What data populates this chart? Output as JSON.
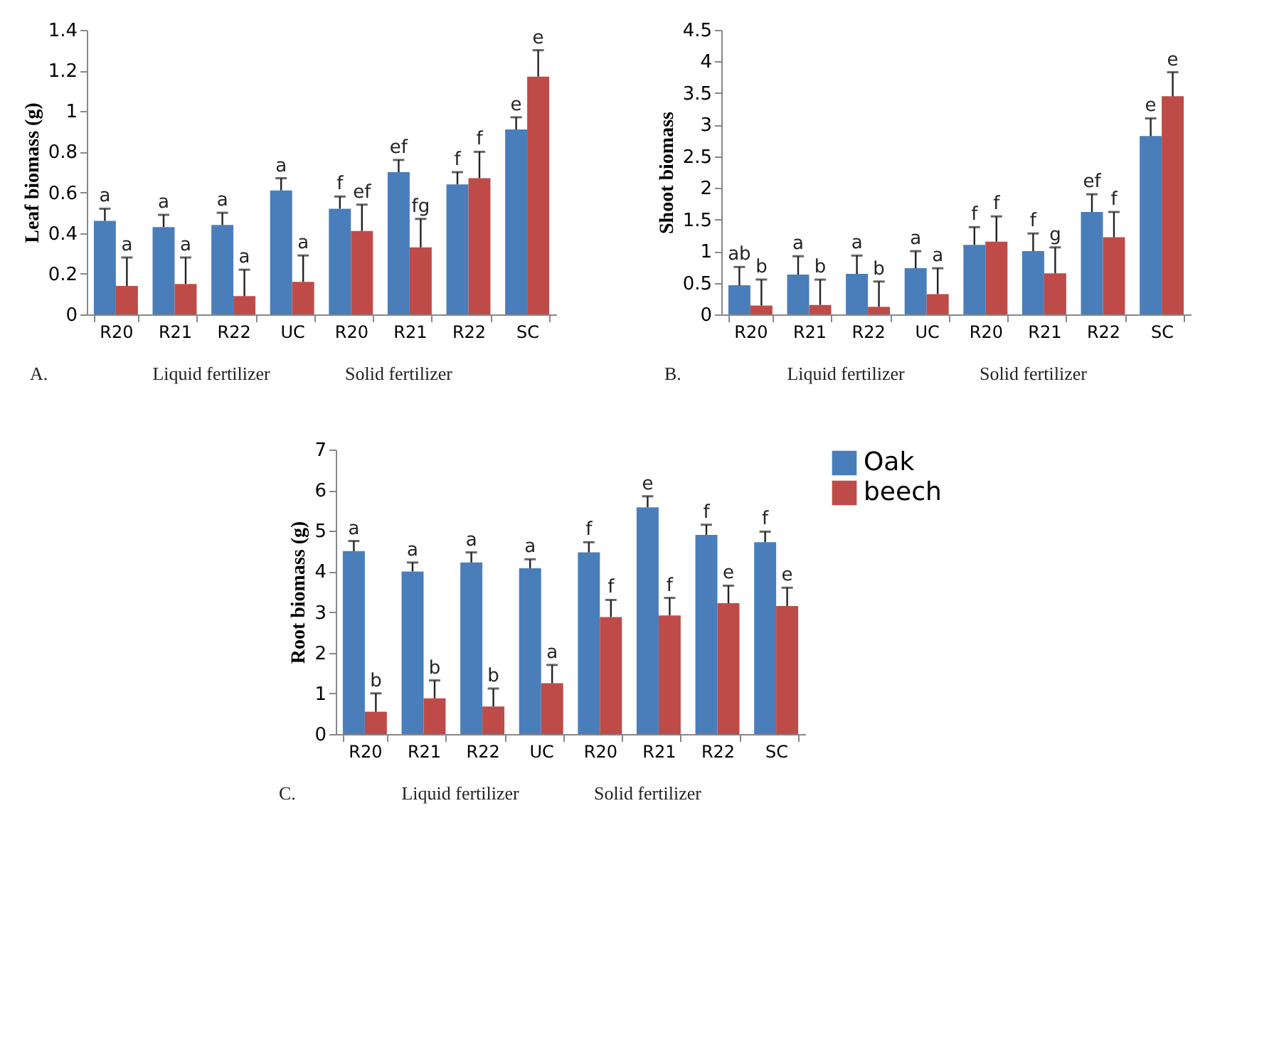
{
  "chart_data": [
    {
      "type": "bar",
      "ylabel": "Leaf biomass (g)",
      "categories": [
        "R20",
        "R21",
        "R22",
        "UC",
        "R20",
        "R21",
        "R22",
        "SC"
      ],
      "ylim": [
        0,
        1.4
      ],
      "yticks": [
        0,
        0.2,
        0.4,
        0.6,
        0.8,
        1,
        1.2,
        1.4
      ],
      "grid": false,
      "legend": false,
      "series": [
        {
          "color": "#4a7ebb",
          "values": [
            0.46,
            0.43,
            0.44,
            0.61,
            0.52,
            0.7,
            0.64,
            0.91
          ],
          "errors": [
            [
              0.46,
              0.52
            ],
            [
              0.43,
              0.49
            ],
            [
              0.44,
              0.5
            ],
            [
              0.61,
              0.67
            ],
            [
              0.52,
              0.58
            ],
            [
              0.7,
              0.76
            ],
            [
              0.64,
              0.7
            ],
            [
              0.91,
              0.97
            ]
          ],
          "value_labels": [
            "a",
            "a",
            "a",
            "a",
            "f",
            "ef",
            "f",
            "e"
          ]
        },
        {
          "color": "#be4b48",
          "values": [
            0.14,
            0.15,
            0.09,
            0.16,
            0.41,
            0.33,
            0.67,
            1.17
          ],
          "errors": [
            [
              0.14,
              0.28
            ],
            [
              0.15,
              0.28
            ],
            [
              0.09,
              0.22
            ],
            [
              0.16,
              0.29
            ],
            [
              0.41,
              0.54
            ],
            [
              0.33,
              0.47
            ],
            [
              0.67,
              0.8
            ],
            [
              1.17,
              1.3
            ]
          ],
          "value_labels": [
            "a",
            "a",
            "a",
            "a",
            "ef",
            "fg",
            "f",
            "e"
          ]
        }
      ],
      "annotations": [
        "A.",
        "Liquid fertilizer",
        "Solid fertilizer"
      ]
    },
    {
      "type": "bar",
      "ylabel": "Shoot biomass",
      "categories": [
        "R20",
        "R21",
        "R22",
        "UC",
        "R20",
        "R21",
        "R22",
        "SC"
      ],
      "ylim": [
        0,
        4.5
      ],
      "yticks": [
        0,
        0.5,
        1,
        1.5,
        2,
        2.5,
        3,
        3.5,
        4,
        4.5
      ],
      "grid": false,
      "legend": false,
      "series": [
        {
          "color": "#4a7ebb",
          "values": [
            0.46,
            0.63,
            0.64,
            0.73,
            1.1,
            1.0,
            1.62,
            2.82
          ],
          "errors": [
            [
              0.46,
              0.75
            ],
            [
              0.63,
              0.92
            ],
            [
              0.64,
              0.93
            ],
            [
              0.73,
              1.0
            ],
            [
              1.1,
              1.38
            ],
            [
              1.0,
              1.28
            ],
            [
              1.62,
              1.9
            ],
            [
              2.82,
              3.1
            ]
          ],
          "value_labels": [
            "ab",
            "a",
            "a",
            "a",
            "f",
            "f",
            "ef",
            "e"
          ]
        },
        {
          "color": "#be4b48",
          "values": [
            0.14,
            0.15,
            0.12,
            0.32,
            1.15,
            0.65,
            1.22,
            3.45
          ],
          "errors": [
            [
              0.14,
              0.55
            ],
            [
              0.15,
              0.55
            ],
            [
              0.12,
              0.52
            ],
            [
              0.32,
              0.73
            ],
            [
              1.15,
              1.55
            ],
            [
              0.65,
              1.06
            ],
            [
              1.22,
              1.62
            ],
            [
              3.45,
              3.83
            ]
          ],
          "value_labels": [
            "b",
            "b",
            "b",
            "a",
            "f",
            "g",
            "f",
            "e"
          ]
        }
      ],
      "annotations": [
        "B.",
        "Liquid fertilizer",
        "Solid fertilizer"
      ]
    },
    {
      "type": "bar",
      "ylabel": "Root biomass (g)",
      "categories": [
        "R20",
        "R21",
        "R22",
        "UC",
        "R20",
        "R21",
        "R22",
        "SC"
      ],
      "ylim": [
        0,
        7
      ],
      "yticks": [
        0,
        1,
        2,
        3,
        4,
        5,
        6,
        7
      ],
      "grid": false,
      "legend": "right",
      "series": [
        {
          "name": "Oak",
          "color": "#4a7ebb",
          "values": [
            4.5,
            4.0,
            4.22,
            4.08,
            4.47,
            5.58,
            4.9,
            4.72
          ],
          "errors": [
            [
              4.5,
              4.75
            ],
            [
              4.0,
              4.22
            ],
            [
              4.22,
              4.47
            ],
            [
              4.08,
              4.3
            ],
            [
              4.47,
              4.72
            ],
            [
              5.58,
              5.85
            ],
            [
              4.9,
              5.15
            ],
            [
              4.72,
              4.98
            ]
          ],
          "value_labels": [
            "a",
            "a",
            "a",
            "a",
            "f",
            "e",
            "f",
            "f"
          ]
        },
        {
          "name": "beech",
          "color": "#be4b48",
          "values": [
            0.55,
            0.88,
            0.68,
            1.25,
            2.88,
            2.92,
            3.22,
            3.15
          ],
          "errors": [
            [
              0.55,
              1.0
            ],
            [
              0.88,
              1.32
            ],
            [
              0.68,
              1.12
            ],
            [
              1.25,
              1.7
            ],
            [
              2.88,
              3.3
            ],
            [
              2.92,
              3.35
            ],
            [
              3.22,
              3.65
            ],
            [
              3.15,
              3.6
            ]
          ],
          "value_labels": [
            "b",
            "b",
            "b",
            "a",
            "f",
            "f",
            "e",
            "e"
          ]
        }
      ],
      "annotations": [
        "C.",
        "Liquid fertilizer",
        "Solid fertilizer"
      ]
    }
  ]
}
